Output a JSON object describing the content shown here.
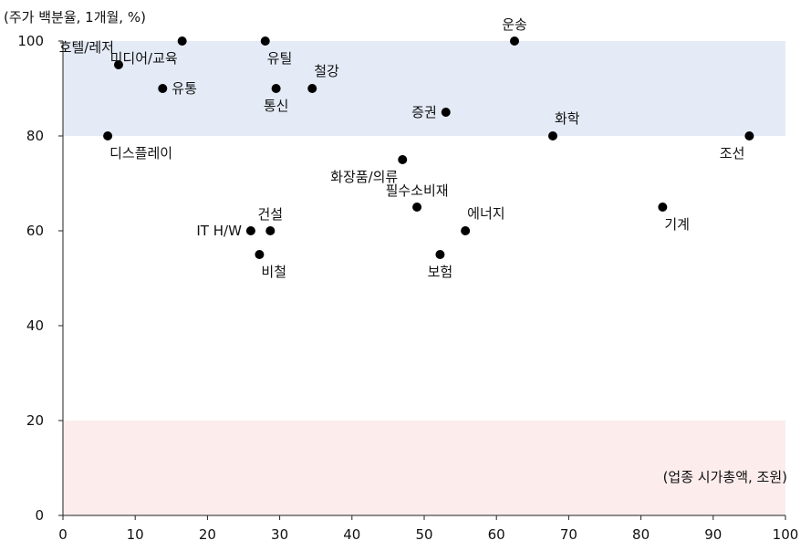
{
  "chart_data": {
    "type": "scatter",
    "ylabel": "(주가 백분율, 1개월, %)",
    "xlabel": "(업종 시가총액, 조원)",
    "xlim": [
      0,
      100
    ],
    "ylim": [
      0,
      100
    ],
    "xticks": [
      0,
      10,
      20,
      30,
      40,
      50,
      60,
      70,
      80,
      90,
      100
    ],
    "yticks": [
      0,
      20,
      40,
      60,
      80,
      100
    ],
    "grid": false,
    "bands": [
      {
        "from": 80,
        "to": 100,
        "color": "#e4ebf6"
      },
      {
        "from": 0,
        "to": 20,
        "color": "#fcecec"
      }
    ],
    "points": [
      {
        "label": "운송",
        "x": 62.5,
        "y": 100,
        "label_pos": "top"
      },
      {
        "label": "미디어/교육",
        "x": 16.5,
        "y": 100,
        "label_pos": "bottom-left"
      },
      {
        "label": "유틸",
        "x": 28,
        "y": 100,
        "label_pos": "bottom-right"
      },
      {
        "label": "호텔/레저",
        "x": 7.7,
        "y": 95,
        "label_pos": "top-left"
      },
      {
        "label": "유통",
        "x": 13.8,
        "y": 90,
        "label_pos": "right"
      },
      {
        "label": "통신",
        "x": 29.5,
        "y": 90,
        "label_pos": "bottom"
      },
      {
        "label": "철강",
        "x": 34.5,
        "y": 90,
        "label_pos": "top-right"
      },
      {
        "label": "증권",
        "x": 53,
        "y": 85,
        "label_pos": "left"
      },
      {
        "label": "디스플레이",
        "x": 6.2,
        "y": 80,
        "label_pos": "bottom-right"
      },
      {
        "label": "화학",
        "x": 67.8,
        "y": 80,
        "label_pos": "top-right"
      },
      {
        "label": "조선",
        "x": 95,
        "y": 80,
        "label_pos": "bottom-left"
      },
      {
        "label": "화장품/의류",
        "x": 47,
        "y": 75,
        "label_pos": "bottom-left"
      },
      {
        "label": "필수소비재",
        "x": 49,
        "y": 65,
        "label_pos": "top"
      },
      {
        "label": "기계",
        "x": 83,
        "y": 65,
        "label_pos": "bottom-right"
      },
      {
        "label": "IT H/W",
        "x": 26,
        "y": 60,
        "label_pos": "left"
      },
      {
        "label": "건설",
        "x": 28.7,
        "y": 60,
        "label_pos": "top"
      },
      {
        "label": "에너지",
        "x": 55.7,
        "y": 60,
        "label_pos": "top-right"
      },
      {
        "label": "비철",
        "x": 27.2,
        "y": 55,
        "label_pos": "bottom-right"
      },
      {
        "label": "보험",
        "x": 52.2,
        "y": 55,
        "label_pos": "bottom"
      }
    ],
    "colors": {
      "point": "#000000",
      "axis": "#222222",
      "text": "#111111"
    }
  }
}
